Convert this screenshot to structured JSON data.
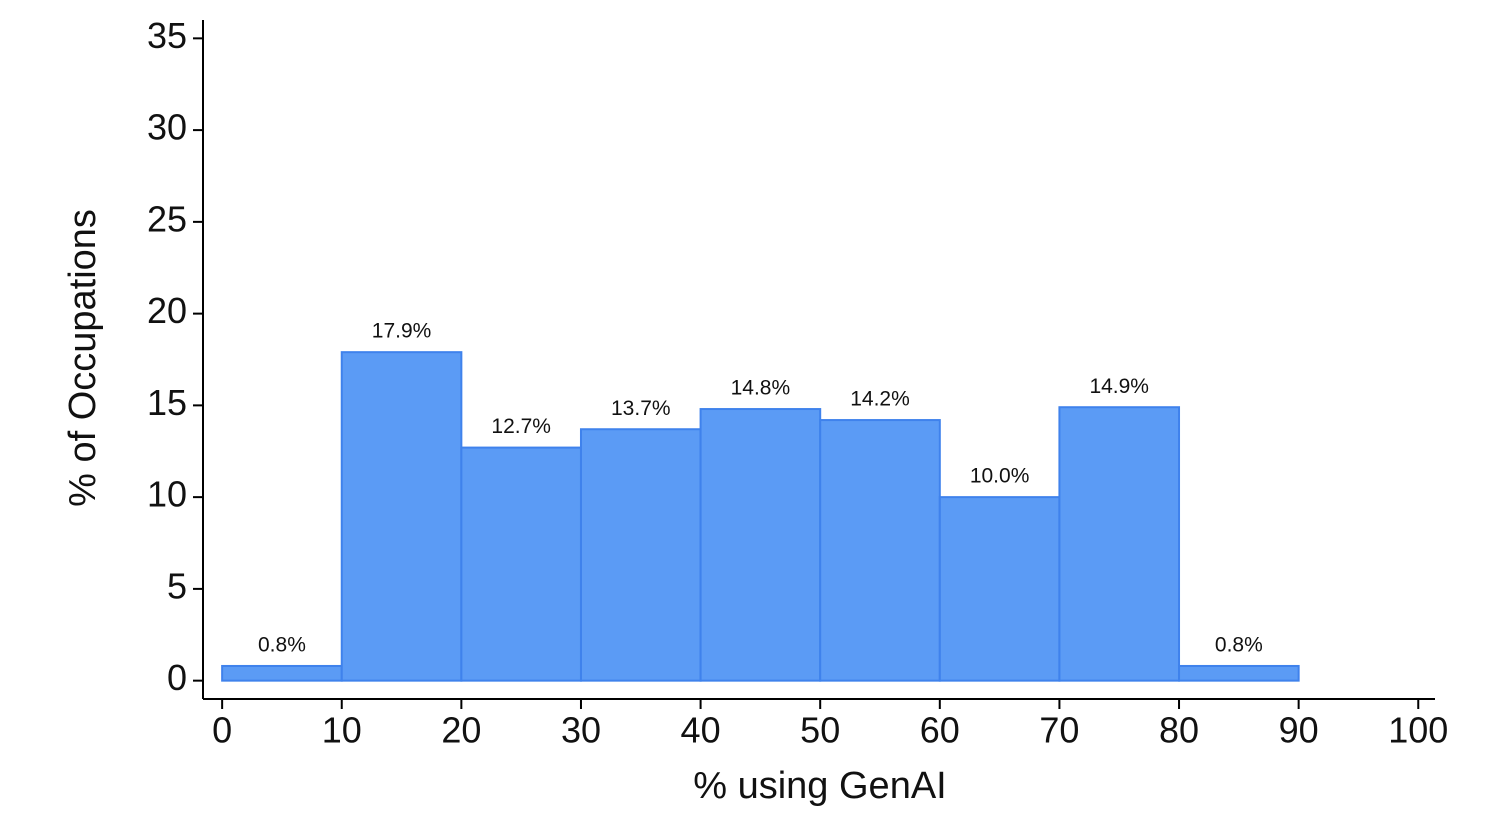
{
  "chart_data": {
    "type": "histogram",
    "x_label": "% using GenAI",
    "y_label": "% of Occupations",
    "bins": [
      0,
      10,
      20,
      30,
      40,
      50,
      60,
      70,
      80,
      90
    ],
    "values": [
      0.8,
      17.9,
      12.7,
      13.7,
      14.8,
      14.2,
      10.0,
      14.9,
      0.8
    ],
    "value_labels": [
      "0.8%",
      "17.9%",
      "12.7%",
      "13.7%",
      "14.8%",
      "14.2%",
      "10.0%",
      "14.9%",
      "0.8%"
    ],
    "color": "#5b9bf5",
    "edge_color": "#3f82ec",
    "xlim": [
      -1.6,
      101.4
    ],
    "xticks": [
      0,
      10,
      20,
      30,
      40,
      50,
      60,
      70,
      80,
      90,
      100
    ],
    "ylim": [
      -1,
      36
    ],
    "yticks": [
      0,
      5,
      10,
      15,
      20,
      25,
      30,
      35
    ],
    "grid": false
  }
}
